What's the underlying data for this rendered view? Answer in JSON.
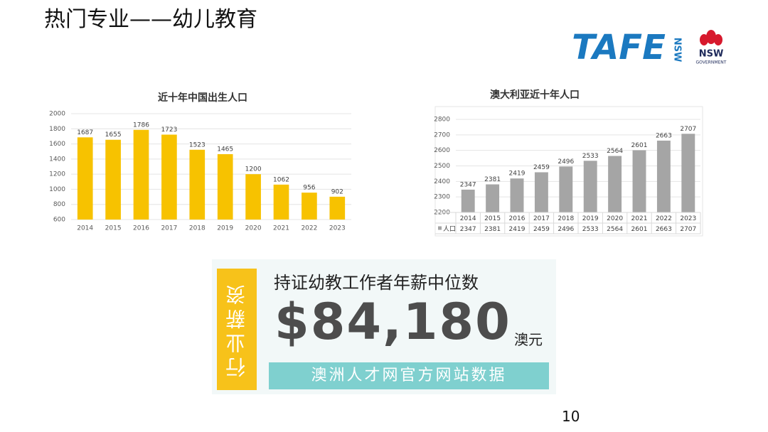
{
  "page_title": "热门专业——幼儿教育",
  "logo": {
    "brand": "TAFE",
    "brand_side": "NSW",
    "gov_name": "NSW",
    "gov_sub": "GOVERNMENT"
  },
  "chart_data": [
    {
      "type": "bar",
      "title": "近十年中国出生人口",
      "categories": [
        "2014",
        "2015",
        "2016",
        "2017",
        "2018",
        "2019",
        "2020",
        "2021",
        "2022",
        "2023"
      ],
      "values": [
        1687,
        1655,
        1786,
        1723,
        1523,
        1465,
        1200,
        1062,
        956,
        902
      ],
      "color": "#f7c200",
      "ylim": [
        600,
        2000
      ],
      "yticks": [
        600,
        800,
        1000,
        1200,
        1400,
        1600,
        1800,
        2000
      ],
      "grid": true
    },
    {
      "type": "bar",
      "title": "澳大利亚近十年人口",
      "categories": [
        "2014",
        "2015",
        "2016",
        "2017",
        "2018",
        "2019",
        "2020",
        "2021",
        "2022",
        "2023"
      ],
      "series": [
        {
          "name": "人口",
          "color": "#a5a5a5",
          "values": [
            2347,
            2381,
            2419,
            2459,
            2496,
            2533,
            2564,
            2601,
            2663,
            2707
          ]
        }
      ],
      "ylim": [
        2200,
        2800
      ],
      "yticks": [
        2200,
        2300,
        2400,
        2500,
        2600,
        2700,
        2800
      ],
      "grid": true,
      "data_table": true
    }
  ],
  "salary": {
    "side_label": "行业薪资",
    "heading": "持证幼教工作者年薪中位数",
    "amount": "$84,180",
    "unit": "澳元",
    "source": "澳洲人才网官方网站数据"
  },
  "page_number": "10"
}
